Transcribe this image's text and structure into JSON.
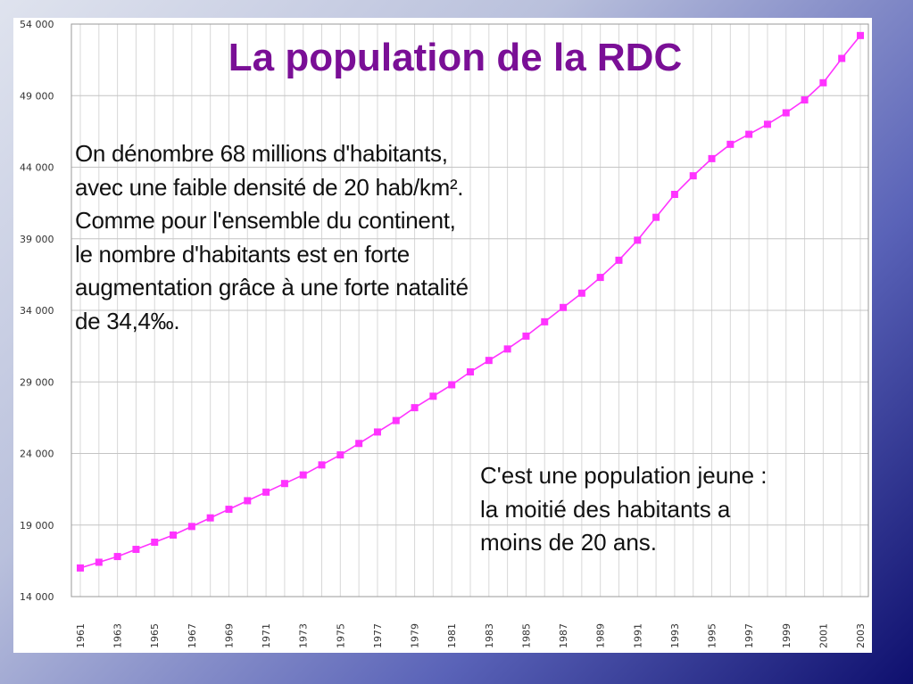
{
  "slide": {
    "title": "La population de la RDC",
    "left_text": [
      "On dénombre 68 millions d'habitants,",
      "avec une faible densité de 20 hab/km².",
      "Comme pour l'ensemble du continent,",
      "le nombre d'habitants est en forte",
      "augmentation grâce à une forte natalité",
      "de 34,4‰."
    ],
    "right_text": [
      "C'est une population jeune :",
      "la moitié des habitants a",
      "moins de 20 ans."
    ]
  },
  "colors": {
    "title": "#7a0f96",
    "series": "#ff33ff",
    "grid": "#d8d8d8",
    "axis_text": "#333333"
  },
  "chart_data": {
    "type": "line",
    "title": "",
    "xlabel": "",
    "ylabel": "",
    "xlim": [
      1961,
      2003
    ],
    "ylim": [
      14000,
      54000
    ],
    "grid": true,
    "y_ticks": [
      14000,
      19000,
      24000,
      29000,
      34000,
      39000,
      44000,
      49000,
      54000
    ],
    "y_tick_labels": [
      "14 000",
      "19 000",
      "24 000",
      "29 000",
      "34 000",
      "39 000",
      "44 000",
      "49 000",
      "54 000"
    ],
    "x_tick_labels": [
      "1961",
      "1963",
      "1965",
      "1967",
      "1969",
      "1971",
      "1973",
      "1975",
      "1977",
      "1979",
      "1981",
      "1983",
      "1985",
      "1987",
      "1989",
      "1991",
      "1993",
      "1995",
      "1997",
      "1999",
      "2001",
      "2003"
    ],
    "x": [
      1961,
      1962,
      1963,
      1964,
      1965,
      1966,
      1967,
      1968,
      1969,
      1970,
      1971,
      1972,
      1973,
      1974,
      1975,
      1976,
      1977,
      1978,
      1979,
      1980,
      1981,
      1982,
      1983,
      1984,
      1985,
      1986,
      1987,
      1988,
      1989,
      1990,
      1991,
      1992,
      1993,
      1994,
      1995,
      1996,
      1997,
      1998,
      1999,
      2000,
      2001,
      2002,
      2003
    ],
    "series": [
      {
        "values": [
          16000,
          16400,
          16800,
          17300,
          17800,
          18300,
          18900,
          19500,
          20100,
          20700,
          21300,
          21900,
          22500,
          23200,
          23900,
          24700,
          25500,
          26300,
          27200,
          28000,
          28800,
          29700,
          30500,
          31300,
          32200,
          33200,
          34200,
          35200,
          36300,
          37500,
          38900,
          40500,
          42100,
          43400,
          44600,
          45600,
          46300,
          47000,
          47800,
          48700,
          49900,
          51600,
          53200
        ]
      }
    ]
  }
}
